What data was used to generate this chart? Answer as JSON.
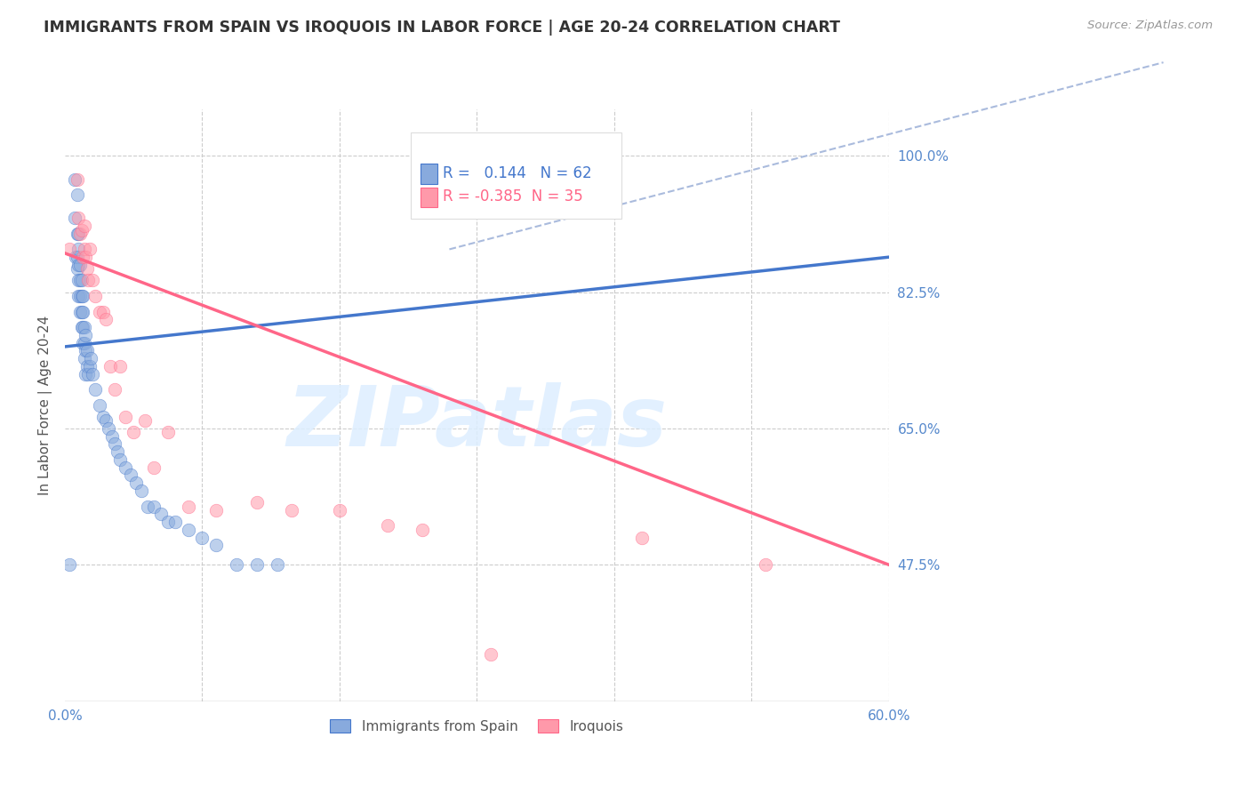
{
  "title": "IMMIGRANTS FROM SPAIN VS IROQUOIS IN LABOR FORCE | AGE 20-24 CORRELATION CHART",
  "source": "Source: ZipAtlas.com",
  "ylabel": "In Labor Force | Age 20-24",
  "xlim": [
    0.0,
    0.6
  ],
  "ylim": [
    0.3,
    1.06
  ],
  "xticks": [
    0.0,
    0.1,
    0.2,
    0.3,
    0.4,
    0.5,
    0.6
  ],
  "xticklabels": [
    "0.0%",
    "",
    "",
    "",
    "",
    "",
    "60.0%"
  ],
  "yticks_right": [
    0.475,
    0.65,
    0.825,
    1.0
  ],
  "yticklabels_right": [
    "47.5%",
    "65.0%",
    "82.5%",
    "100.0%"
  ],
  "blue_R": 0.144,
  "blue_N": 62,
  "pink_R": -0.385,
  "pink_N": 35,
  "blue_color": "#88AADD",
  "pink_color": "#FF99AA",
  "blue_line_color": "#4477CC",
  "pink_line_color": "#FF6688",
  "dashed_line_color": "#AABBDD",
  "watermark_color": "#DDEEFF",
  "blue_scatter_x": [
    0.003,
    0.007,
    0.007,
    0.008,
    0.009,
    0.009,
    0.009,
    0.009,
    0.01,
    0.01,
    0.01,
    0.01,
    0.01,
    0.011,
    0.011,
    0.011,
    0.011,
    0.012,
    0.012,
    0.012,
    0.012,
    0.013,
    0.013,
    0.013,
    0.013,
    0.014,
    0.014,
    0.014,
    0.015,
    0.015,
    0.015,
    0.016,
    0.016,
    0.017,
    0.018,
    0.019,
    0.02,
    0.022,
    0.025,
    0.028,
    0.03,
    0.032,
    0.034,
    0.036,
    0.038,
    0.04,
    0.044,
    0.048,
    0.052,
    0.056,
    0.06,
    0.065,
    0.07,
    0.075,
    0.08,
    0.09,
    0.1,
    0.11,
    0.125,
    0.14,
    0.155,
    0.33
  ],
  "blue_scatter_y": [
    0.475,
    0.92,
    0.97,
    0.87,
    0.855,
    0.87,
    0.9,
    0.95,
    0.82,
    0.84,
    0.86,
    0.88,
    0.9,
    0.8,
    0.82,
    0.84,
    0.86,
    0.78,
    0.8,
    0.82,
    0.84,
    0.76,
    0.78,
    0.8,
    0.82,
    0.74,
    0.76,
    0.78,
    0.72,
    0.75,
    0.77,
    0.73,
    0.75,
    0.72,
    0.73,
    0.74,
    0.72,
    0.7,
    0.68,
    0.665,
    0.66,
    0.65,
    0.64,
    0.63,
    0.62,
    0.61,
    0.6,
    0.59,
    0.58,
    0.57,
    0.55,
    0.55,
    0.54,
    0.53,
    0.53,
    0.52,
    0.51,
    0.5,
    0.475,
    0.475,
    0.475,
    0.975
  ],
  "pink_scatter_x": [
    0.003,
    0.009,
    0.01,
    0.011,
    0.012,
    0.013,
    0.014,
    0.014,
    0.015,
    0.016,
    0.017,
    0.018,
    0.02,
    0.022,
    0.025,
    0.028,
    0.03,
    0.033,
    0.036,
    0.04,
    0.044,
    0.05,
    0.058,
    0.065,
    0.075,
    0.09,
    0.11,
    0.14,
    0.165,
    0.2,
    0.235,
    0.26,
    0.31,
    0.42,
    0.51
  ],
  "pink_scatter_y": [
    0.88,
    0.97,
    0.92,
    0.9,
    0.905,
    0.87,
    0.88,
    0.91,
    0.87,
    0.855,
    0.84,
    0.88,
    0.84,
    0.82,
    0.8,
    0.8,
    0.79,
    0.73,
    0.7,
    0.73,
    0.665,
    0.645,
    0.66,
    0.6,
    0.645,
    0.55,
    0.545,
    0.555,
    0.545,
    0.545,
    0.525,
    0.52,
    0.36,
    0.51,
    0.475
  ],
  "blue_line_x": [
    0.0,
    0.6
  ],
  "blue_line_y": [
    0.755,
    0.87
  ],
  "pink_line_x": [
    0.0,
    0.6
  ],
  "pink_line_y": [
    0.875,
    0.475
  ],
  "dashed_line_x": [
    0.28,
    0.8
  ],
  "dashed_line_y": [
    0.88,
    1.12
  ]
}
